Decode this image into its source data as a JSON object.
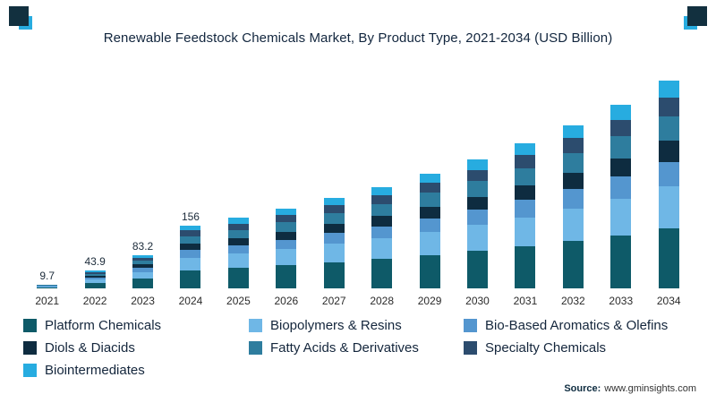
{
  "chart_data": {
    "type": "bar",
    "stacked": true,
    "title": "Renewable Feedstock Chemicals Market, By Product Type, 2021-2034 (USD Billion)",
    "unit": "USD Billion",
    "legend_position": "bottom",
    "grid": false,
    "ylim": [
      0,
      540
    ],
    "categories": [
      "2021",
      "2022",
      "2023",
      "2024",
      "2025",
      "2026",
      "2027",
      "2028",
      "2029",
      "2030",
      "2031",
      "2032",
      "2033",
      "2034"
    ],
    "totals": [
      9.7,
      43.9,
      83.2,
      156,
      175,
      198,
      225,
      252,
      285,
      320,
      360,
      405,
      455,
      515
    ],
    "total_labels": [
      "9.7",
      "43.9",
      "83.2",
      "156",
      "",
      "",
      "",
      "",
      "",
      "",
      "",
      "",
      "",
      ""
    ],
    "series": [
      {
        "name": "Platform Chemicals",
        "color": "#0E5A68",
        "share": 0.29
      },
      {
        "name": "Biopolymers & Resins",
        "color": "#6FB7E6",
        "share": 0.2
      },
      {
        "name": "Bio-Based Aromatics & Olefins",
        "color": "#5496CF",
        "share": 0.12
      },
      {
        "name": "Diols & Diacids",
        "color": "#0E2C40",
        "share": 0.1
      },
      {
        "name": "Fatty Acids & Derivatives",
        "color": "#2E7D9E",
        "share": 0.12
      },
      {
        "name": "Specialty Chemicals",
        "color": "#2C4C6E",
        "share": 0.09
      },
      {
        "name": "Biointermediates",
        "color": "#27ACE0",
        "share": 0.08
      }
    ]
  },
  "decor": {
    "dark_color": "#12303F",
    "accent_color": "#27ACE0"
  },
  "source": {
    "label": "Source:",
    "url": "www.gminsights.com"
  }
}
